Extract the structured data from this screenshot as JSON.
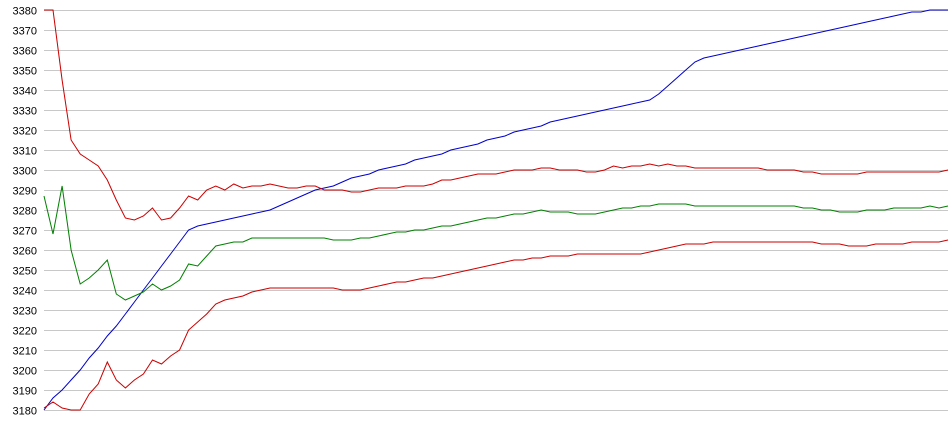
{
  "chart_data": {
    "type": "line",
    "title": "",
    "xlabel": "",
    "ylabel": "",
    "ylim": [
      3180,
      3380
    ],
    "y_ticks": [
      3380,
      3370,
      3360,
      3350,
      3340,
      3330,
      3320,
      3310,
      3300,
      3290,
      3280,
      3270,
      3260,
      3250,
      3240,
      3230,
      3220,
      3210,
      3200,
      3190,
      3180
    ],
    "grid": "horizontal",
    "legend": "none",
    "x": [
      0,
      3,
      6,
      9,
      12,
      15,
      18,
      21,
      24,
      27,
      30,
      33,
      36,
      39,
      42,
      45,
      48,
      51,
      54,
      57,
      60,
      63,
      66,
      69,
      72,
      75,
      78,
      81,
      84,
      87,
      90,
      93,
      96,
      99,
      102,
      105,
      108,
      111,
      114,
      117,
      120,
      123,
      126,
      129,
      132,
      135,
      138,
      141,
      144,
      147,
      150,
      153,
      156,
      159,
      162,
      165,
      168,
      171,
      174,
      177,
      180,
      183,
      186,
      189,
      192,
      195,
      198,
      201,
      204,
      207,
      210,
      213,
      216,
      219,
      222,
      225,
      228,
      231,
      234,
      237,
      240,
      243,
      246,
      249,
      252,
      255,
      258,
      261,
      264,
      267,
      270,
      273,
      276,
      279,
      282,
      285,
      288,
      291,
      294,
      297,
      300
    ],
    "series": [
      {
        "color": "#0000cc",
        "values": [
          3180,
          3186,
          3190,
          3195,
          3200,
          3206,
          3211,
          3217,
          3222,
          3228,
          3234,
          3240,
          3246,
          3252,
          3258,
          3264,
          3270,
          3272,
          3273,
          3274,
          3275,
          3276,
          3277,
          3278,
          3279,
          3280,
          3282,
          3284,
          3286,
          3288,
          3290,
          3291,
          3292,
          3294,
          3296,
          3297,
          3298,
          3300,
          3301,
          3302,
          3303,
          3305,
          3306,
          3307,
          3308,
          3310,
          3311,
          3312,
          3313,
          3315,
          3316,
          3317,
          3319,
          3320,
          3321,
          3322,
          3324,
          3325,
          3326,
          3327,
          3328,
          3329,
          3330,
          3331,
          3332,
          3333,
          3334,
          3335,
          3338,
          3342,
          3346,
          3350,
          3354,
          3356,
          3357,
          3358,
          3359,
          3360,
          3361,
          3362,
          3363,
          3364,
          3365,
          3366,
          3367,
          3368,
          3369,
          3370,
          3371,
          3372,
          3373,
          3374,
          3375,
          3376,
          3377,
          3378,
          3379,
          3379,
          3380,
          3380,
          3380
        ]
      },
      {
        "color": "#cc0000",
        "values": [
          3380,
          3380,
          3345,
          3315,
          3308,
          3305,
          3302,
          3295,
          3285,
          3276,
          3275,
          3277,
          3281,
          3275,
          3276,
          3281,
          3287,
          3285,
          3290,
          3292,
          3290,
          3293,
          3291,
          3292,
          3292,
          3293,
          3292,
          3291,
          3291,
          3292,
          3292,
          3290,
          3290,
          3290,
          3289,
          3289,
          3290,
          3291,
          3291,
          3291,
          3292,
          3292,
          3292,
          3293,
          3295,
          3295,
          3296,
          3297,
          3298,
          3298,
          3298,
          3299,
          3300,
          3300,
          3300,
          3301,
          3301,
          3300,
          3300,
          3300,
          3299,
          3299,
          3300,
          3302,
          3301,
          3302,
          3302,
          3303,
          3302,
          3303,
          3302,
          3302,
          3301,
          3301,
          3301,
          3301,
          3301,
          3301,
          3301,
          3301,
          3300,
          3300,
          3300,
          3300,
          3299,
          3299,
          3298,
          3298,
          3298,
          3298,
          3298,
          3299,
          3299,
          3299,
          3299,
          3299,
          3299,
          3299,
          3299,
          3299,
          3300
        ]
      },
      {
        "color": "#008000",
        "values": [
          3287,
          3268,
          3292,
          3260,
          3243,
          3246,
          3250,
          3255,
          3238,
          3235,
          3237,
          3239,
          3243,
          3240,
          3242,
          3245,
          3253,
          3252,
          3257,
          3262,
          3263,
          3264,
          3264,
          3266,
          3266,
          3266,
          3266,
          3266,
          3266,
          3266,
          3266,
          3266,
          3265,
          3265,
          3265,
          3266,
          3266,
          3267,
          3268,
          3269,
          3269,
          3270,
          3270,
          3271,
          3272,
          3272,
          3273,
          3274,
          3275,
          3276,
          3276,
          3277,
          3278,
          3278,
          3279,
          3280,
          3279,
          3279,
          3279,
          3278,
          3278,
          3278,
          3279,
          3280,
          3281,
          3281,
          3282,
          3282,
          3283,
          3283,
          3283,
          3283,
          3282,
          3282,
          3282,
          3282,
          3282,
          3282,
          3282,
          3282,
          3282,
          3282,
          3282,
          3282,
          3281,
          3281,
          3280,
          3280,
          3279,
          3279,
          3279,
          3280,
          3280,
          3280,
          3281,
          3281,
          3281,
          3281,
          3282,
          3281,
          3282
        ]
      },
      {
        "color": "#cc0000",
        "values": [
          3181,
          3184,
          3181,
          3180,
          3180,
          3188,
          3193,
          3204,
          3195,
          3191,
          3195,
          3198,
          3205,
          3203,
          3207,
          3210,
          3220,
          3224,
          3228,
          3233,
          3235,
          3236,
          3237,
          3239,
          3240,
          3241,
          3241,
          3241,
          3241,
          3241,
          3241,
          3241,
          3241,
          3240,
          3240,
          3240,
          3241,
          3242,
          3243,
          3244,
          3244,
          3245,
          3246,
          3246,
          3247,
          3248,
          3249,
          3250,
          3251,
          3252,
          3253,
          3254,
          3255,
          3255,
          3256,
          3256,
          3257,
          3257,
          3257,
          3258,
          3258,
          3258,
          3258,
          3258,
          3258,
          3258,
          3258,
          3259,
          3260,
          3261,
          3262,
          3263,
          3263,
          3263,
          3264,
          3264,
          3264,
          3264,
          3264,
          3264,
          3264,
          3264,
          3264,
          3264,
          3264,
          3264,
          3263,
          3263,
          3263,
          3262,
          3262,
          3262,
          3263,
          3263,
          3263,
          3263,
          3264,
          3264,
          3264,
          3264,
          3265
        ]
      }
    ]
  }
}
